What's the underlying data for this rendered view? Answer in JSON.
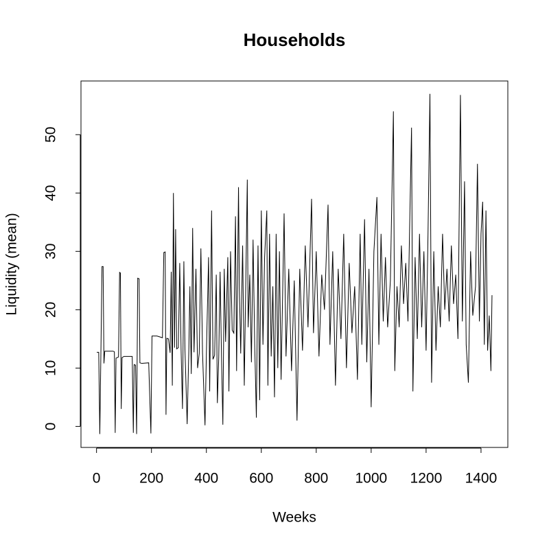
{
  "chart_data": {
    "type": "line",
    "title": "Households",
    "x_label": "Weeks",
    "y_label": "Liquidity (mean)",
    "xlim": [
      -56.6,
      1497.6
    ],
    "ylim": [
      -3.6,
      59.2
    ],
    "xticks": [
      0,
      200,
      400,
      600,
      800,
      1000,
      1200,
      1400
    ],
    "yticks": [
      0,
      10,
      20,
      30,
      40,
      50
    ],
    "grid": false,
    "series": [
      {
        "color": "#000000",
        "x": [
          1,
          8,
          12,
          16,
          20,
          24,
          27,
          30,
          60,
          65,
          68,
          71,
          80,
          84,
          87,
          90,
          93,
          100,
          130,
          134,
          137,
          142,
          146,
          150,
          155,
          158,
          165,
          190,
          198,
          202,
          220,
          240,
          245,
          250,
          253,
          256,
          262,
          268,
          272,
          276,
          280,
          284,
          288,
          292,
          298,
          303,
          308,
          313,
          318,
          322,
          330,
          336,
          340,
          345,
          350,
          355,
          362,
          368,
          374,
          380,
          386,
          395,
          400,
          408,
          412,
          419,
          424,
          430,
          436,
          440,
          445,
          450,
          455,
          460,
          465,
          470,
          478,
          482,
          488,
          494,
          500,
          506,
          510,
          517,
          520,
          525,
          532,
          538,
          549,
          552,
          558,
          564,
          570,
          576,
          582,
          588,
          594,
          600,
          606,
          612,
          620,
          624,
          630,
          636,
          642,
          648,
          654,
          660,
          666,
          672,
          683,
          690,
          700,
          710,
          720,
          730,
          740,
          750,
          760,
          770,
          783,
          790,
          800,
          810,
          820,
          830,
          843,
          850,
          860,
          870,
          880,
          890,
          900,
          910,
          920,
          930,
          940,
          950,
          960,
          966,
          976,
          984,
          992,
          1000,
          1010,
          1021,
          1028,
          1036,
          1044,
          1052,
          1060,
          1070,
          1081,
          1086,
          1094,
          1102,
          1110,
          1118,
          1126,
          1134,
          1140,
          1147,
          1152,
          1160,
          1168,
          1176,
          1184,
          1192,
          1200,
          1207,
          1214,
          1220,
          1228,
          1236,
          1244,
          1252,
          1260,
          1268,
          1276,
          1284,
          1292,
          1300,
          1308,
          1316,
          1325,
          1332,
          1340,
          1346,
          1354,
          1362,
          1370,
          1380,
          1387,
          1394,
          1400,
          1406,
          1412,
          1418,
          1424,
          1430,
          1436,
          1440
        ],
        "values": [
          12.7,
          12.7,
          -1.3,
          12.8,
          27.4,
          27.4,
          10.8,
          12.9,
          12.9,
          12.8,
          -1.1,
          11.7,
          11.9,
          26.4,
          26.3,
          3,
          11.8,
          12,
          12,
          -1.1,
          10.6,
          10.5,
          -1.3,
          25.4,
          25.3,
          10.9,
          10.8,
          10.9,
          -1.2,
          15.5,
          15.5,
          15.2,
          29.8,
          29.9,
          2,
          15.1,
          15,
          12.6,
          26.5,
          7,
          40,
          13.5,
          33.8,
          13.3,
          13.5,
          28,
          13,
          3,
          28.3,
          13.2,
          0.4,
          12.8,
          24,
          9,
          34,
          12.7,
          27,
          10,
          12.5,
          30.5,
          12.6,
          0.2,
          12.4,
          29,
          6,
          37,
          11.5,
          12.2,
          26,
          4,
          11.8,
          26.5,
          12,
          0.3,
          27,
          14.5,
          29,
          6,
          30,
          16.5,
          16,
          36,
          9.5,
          41,
          24,
          12.5,
          31,
          7,
          42.3,
          17,
          26,
          11,
          32,
          14,
          1.5,
          31,
          4.5,
          37,
          14,
          29,
          37,
          7,
          33,
          12,
          24,
          5,
          33,
          10,
          30,
          8,
          36.5,
          12,
          27,
          9.5,
          25,
          1,
          27,
          13,
          31,
          17,
          39,
          16,
          30,
          12,
          26,
          20,
          38,
          14,
          30,
          7,
          27,
          15,
          33,
          10,
          28,
          16,
          24,
          8,
          33,
          14,
          35.5,
          11,
          27,
          3.3,
          30,
          39.3,
          14,
          33,
          18,
          29,
          17,
          25,
          54,
          9.5,
          24,
          17,
          31,
          21,
          28,
          18,
          34,
          51.2,
          6,
          29,
          15,
          33,
          17,
          30,
          13,
          33,
          57,
          7.5,
          30,
          13,
          24,
          17,
          33,
          20,
          27,
          18,
          31,
          21,
          26,
          15,
          56.8,
          18,
          42,
          14,
          7.5,
          30,
          19,
          24,
          45,
          18,
          33,
          38.5,
          14,
          37,
          13,
          19,
          9.5,
          22.5
        ]
      }
    ]
  }
}
